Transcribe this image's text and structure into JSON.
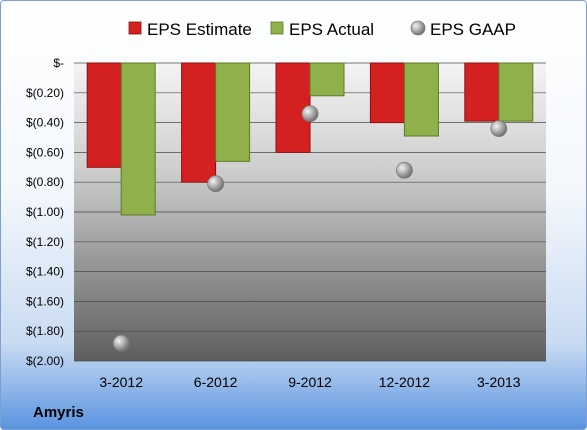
{
  "company": "Amyris",
  "chart_data": {
    "type": "bar",
    "categories": [
      "3-2012",
      "6-2012",
      "9-2012",
      "12-2012",
      "3-2013"
    ],
    "series": [
      {
        "name": "EPS Estimate",
        "kind": "bar",
        "color": "#d42020",
        "values": [
          -0.7,
          -0.8,
          -0.6,
          -0.4,
          -0.39
        ]
      },
      {
        "name": "EPS Actual",
        "kind": "bar",
        "color": "#8fb04a",
        "values": [
          -1.02,
          -0.66,
          -0.22,
          -0.49,
          -0.39
        ]
      },
      {
        "name": "EPS GAAP",
        "kind": "marker",
        "color": "#a6a6a6",
        "values": [
          -1.88,
          -0.81,
          -0.34,
          -0.72,
          -0.44
        ]
      }
    ],
    "ylim": [
      -2.0,
      0
    ],
    "y_ticks": [
      {
        "value": 0,
        "label": "$-"
      },
      {
        "value": -0.2,
        "label": "$(0.20)"
      },
      {
        "value": -0.4,
        "label": "$(0.40)"
      },
      {
        "value": -0.6,
        "label": "$(0.60)"
      },
      {
        "value": -0.8,
        "label": "$(0.80)"
      },
      {
        "value": -1.0,
        "label": "$(1.00)"
      },
      {
        "value": -1.2,
        "label": "$(1.20)"
      },
      {
        "value": -1.4,
        "label": "$(1.40)"
      },
      {
        "value": -1.6,
        "label": "$(1.60)"
      },
      {
        "value": -1.8,
        "label": "$(1.80)"
      },
      {
        "value": -2.0,
        "label": "$(2.00)"
      }
    ],
    "grid": true,
    "legend_position": "top"
  }
}
